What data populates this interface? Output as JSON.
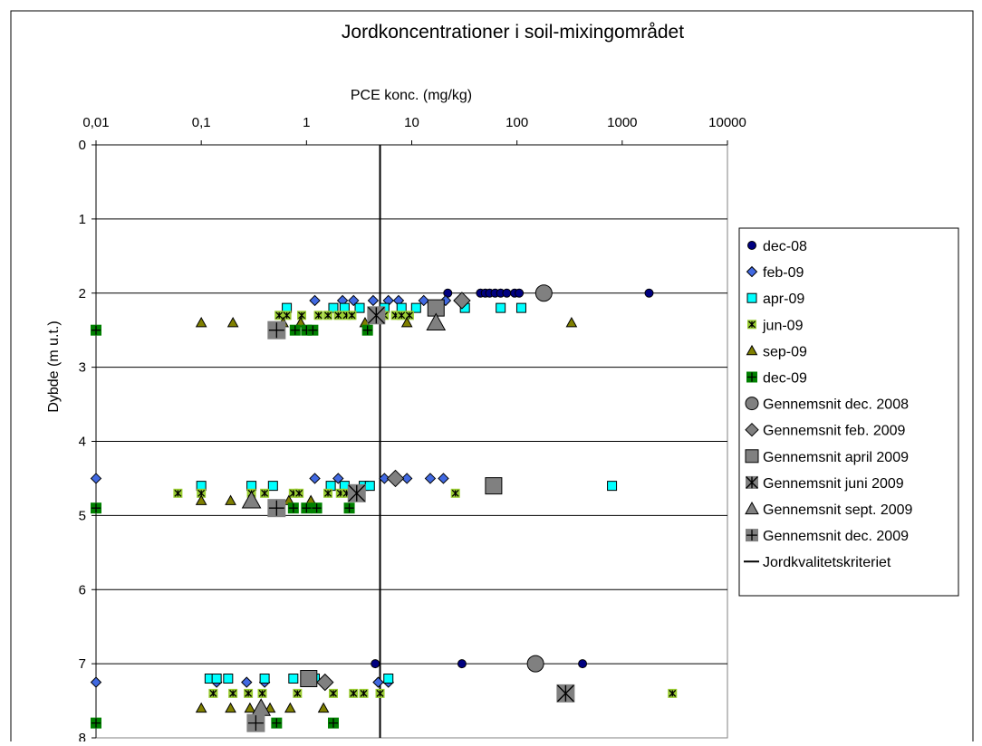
{
  "chart_data": {
    "type": "scatter",
    "title": "Jordkoncentrationer i soil-mixingområdet",
    "xlabel": "PCE konc. (mg/kg)",
    "ylabel": "Dybde (m u.t.)",
    "x_scale": "log",
    "xlim": [
      0.01,
      10000
    ],
    "ylim": [
      0,
      8
    ],
    "y_inverted": true,
    "x_ticks": [
      "0,01",
      "0,1",
      "1",
      "10",
      "100",
      "1000",
      "10000"
    ],
    "y_ticks": [
      "0",
      "1",
      "2",
      "3",
      "4",
      "5",
      "6",
      "7",
      "8"
    ],
    "grid": "horizontal",
    "legend_position": "right",
    "series": [
      {
        "name": "dec-08",
        "marker": "circle",
        "color": "#000080",
        "size": 9,
        "points": [
          [
            22,
            2
          ],
          [
            45,
            2
          ],
          [
            50,
            2
          ],
          [
            55,
            2
          ],
          [
            62,
            2
          ],
          [
            70,
            2
          ],
          [
            80,
            2
          ],
          [
            95,
            2
          ],
          [
            105,
            2
          ],
          [
            1800,
            2
          ],
          [
            4.5,
            7
          ],
          [
            30,
            7
          ],
          [
            420,
            7
          ]
        ]
      },
      {
        "name": "feb-09",
        "marker": "diamond",
        "color": "#4169E1",
        "size": 11,
        "points": [
          [
            1.2,
            2.1
          ],
          [
            2.2,
            2.1
          ],
          [
            2.8,
            2.1
          ],
          [
            4.3,
            2.1
          ],
          [
            6,
            2.1
          ],
          [
            7.5,
            2.1
          ],
          [
            13,
            2.1
          ],
          [
            21,
            2.1
          ],
          [
            0.01,
            4.5
          ],
          [
            1.2,
            4.5
          ],
          [
            2,
            4.5
          ],
          [
            5.5,
            4.5
          ],
          [
            9,
            4.5
          ],
          [
            15,
            4.5
          ],
          [
            20,
            4.5
          ],
          [
            0.01,
            7.25
          ],
          [
            0.14,
            7.25
          ],
          [
            0.27,
            7.25
          ],
          [
            0.4,
            7.25
          ],
          [
            4.8,
            7.25
          ],
          [
            6,
            7.25
          ]
        ]
      },
      {
        "name": "apr-09",
        "marker": "square",
        "color": "#00FFFF",
        "size": 10,
        "points": [
          [
            0.65,
            2.2
          ],
          [
            1.8,
            2.2
          ],
          [
            2.3,
            2.2
          ],
          [
            3.2,
            2.2
          ],
          [
            5.5,
            2.2
          ],
          [
            8,
            2.2
          ],
          [
            11,
            2.2
          ],
          [
            32,
            2.2
          ],
          [
            70,
            2.2
          ],
          [
            110,
            2.2
          ],
          [
            0.1,
            4.6
          ],
          [
            0.3,
            4.6
          ],
          [
            0.48,
            4.6
          ],
          [
            1.7,
            4.6
          ],
          [
            2.3,
            4.6
          ],
          [
            3.5,
            4.6
          ],
          [
            4,
            4.6
          ],
          [
            800,
            4.6
          ],
          [
            0.12,
            7.2
          ],
          [
            0.14,
            7.2
          ],
          [
            0.18,
            7.2
          ],
          [
            0.4,
            7.2
          ],
          [
            0.75,
            7.2
          ],
          [
            1.2,
            7.2
          ],
          [
            6,
            7.2
          ]
        ]
      },
      {
        "name": "jun-09",
        "marker": "asterisk",
        "color": "#9ACD32",
        "size": 10,
        "points": [
          [
            0.55,
            2.3
          ],
          [
            0.65,
            2.3
          ],
          [
            0.9,
            2.3
          ],
          [
            1.3,
            2.3
          ],
          [
            1.6,
            2.3
          ],
          [
            2,
            2.3
          ],
          [
            2.4,
            2.3
          ],
          [
            2.7,
            2.3
          ],
          [
            5.5,
            2.3
          ],
          [
            7,
            2.3
          ],
          [
            8,
            2.3
          ],
          [
            9.5,
            2.3
          ],
          [
            0.06,
            4.7
          ],
          [
            0.1,
            4.7
          ],
          [
            0.3,
            4.7
          ],
          [
            0.4,
            4.7
          ],
          [
            0.75,
            4.7
          ],
          [
            0.85,
            4.7
          ],
          [
            1.6,
            4.7
          ],
          [
            2.1,
            4.7
          ],
          [
            2.4,
            4.7
          ],
          [
            26,
            4.7
          ],
          [
            0.13,
            7.4
          ],
          [
            0.2,
            7.4
          ],
          [
            0.28,
            7.4
          ],
          [
            0.38,
            7.4
          ],
          [
            0.82,
            7.4
          ],
          [
            1.8,
            7.4
          ],
          [
            2.8,
            7.4
          ],
          [
            3.5,
            7.4
          ],
          [
            5,
            7.4
          ],
          [
            3000,
            7.4
          ]
        ]
      },
      {
        "name": "sep-09",
        "marker": "triangle",
        "color": "#808000",
        "size": 11,
        "points": [
          [
            0.1,
            2.4
          ],
          [
            0.2,
            2.4
          ],
          [
            0.6,
            2.4
          ],
          [
            0.88,
            2.4
          ],
          [
            3.6,
            2.4
          ],
          [
            9,
            2.4
          ],
          [
            330,
            2.4
          ],
          [
            0.1,
            4.8
          ],
          [
            0.19,
            4.8
          ],
          [
            0.68,
            4.8
          ],
          [
            1.1,
            4.8
          ],
          [
            0.1,
            7.6
          ],
          [
            0.19,
            7.6
          ],
          [
            0.29,
            7.6
          ],
          [
            0.45,
            7.6
          ],
          [
            0.7,
            7.6
          ],
          [
            1.45,
            7.6
          ]
        ]
      },
      {
        "name": "dec-09",
        "marker": "square-plus",
        "color": "#008000",
        "size": 12,
        "points": [
          [
            0.01,
            2.5
          ],
          [
            0.78,
            2.5
          ],
          [
            1,
            2.5
          ],
          [
            1.15,
            2.5
          ],
          [
            3.8,
            2.5
          ],
          [
            0.01,
            4.9
          ],
          [
            0.75,
            4.9
          ],
          [
            1,
            4.9
          ],
          [
            1.25,
            4.9
          ],
          [
            2.55,
            4.9
          ],
          [
            0.01,
            7.8
          ],
          [
            0.52,
            7.8
          ],
          [
            1.8,
            7.8
          ]
        ]
      },
      {
        "name": "Gennemsnit dec. 2008",
        "marker": "circle",
        "color": "#808080",
        "size": 18,
        "points": [
          [
            180,
            2
          ],
          [
            150,
            7
          ]
        ]
      },
      {
        "name": "Gennemsnit feb. 2009",
        "marker": "diamond",
        "color": "#808080",
        "size": 18,
        "points": [
          [
            30,
            2.1
          ],
          [
            7,
            4.5
          ],
          [
            1.5,
            7.25
          ]
        ]
      },
      {
        "name": "Gennemsnit april 2009",
        "marker": "square",
        "color": "#808080",
        "size": 18,
        "points": [
          [
            17,
            2.2
          ],
          [
            60,
            4.6
          ],
          [
            1.05,
            7.2
          ]
        ]
      },
      {
        "name": "Gennemsnit juni 2009",
        "marker": "asterisk-box",
        "color": "#808080",
        "size": 20,
        "points": [
          [
            4.6,
            2.3
          ],
          [
            3,
            4.7
          ],
          [
            290,
            7.4
          ]
        ]
      },
      {
        "name": "Gennemsnit sept. 2009",
        "marker": "triangle",
        "color": "#808080",
        "size": 20,
        "points": [
          [
            17,
            2.4
          ],
          [
            0.3,
            4.8
          ],
          [
            0.37,
            7.6
          ]
        ]
      },
      {
        "name": "Gennemsnit dec. 2009",
        "marker": "square-plus",
        "color": "#808080",
        "size": 20,
        "points": [
          [
            0.52,
            2.5
          ],
          [
            0.52,
            4.9
          ],
          [
            0.33,
            7.8
          ]
        ]
      }
    ],
    "reference_line": {
      "name": "Jordkvalitetskriteriet",
      "x": 5,
      "color": "#000000"
    }
  }
}
